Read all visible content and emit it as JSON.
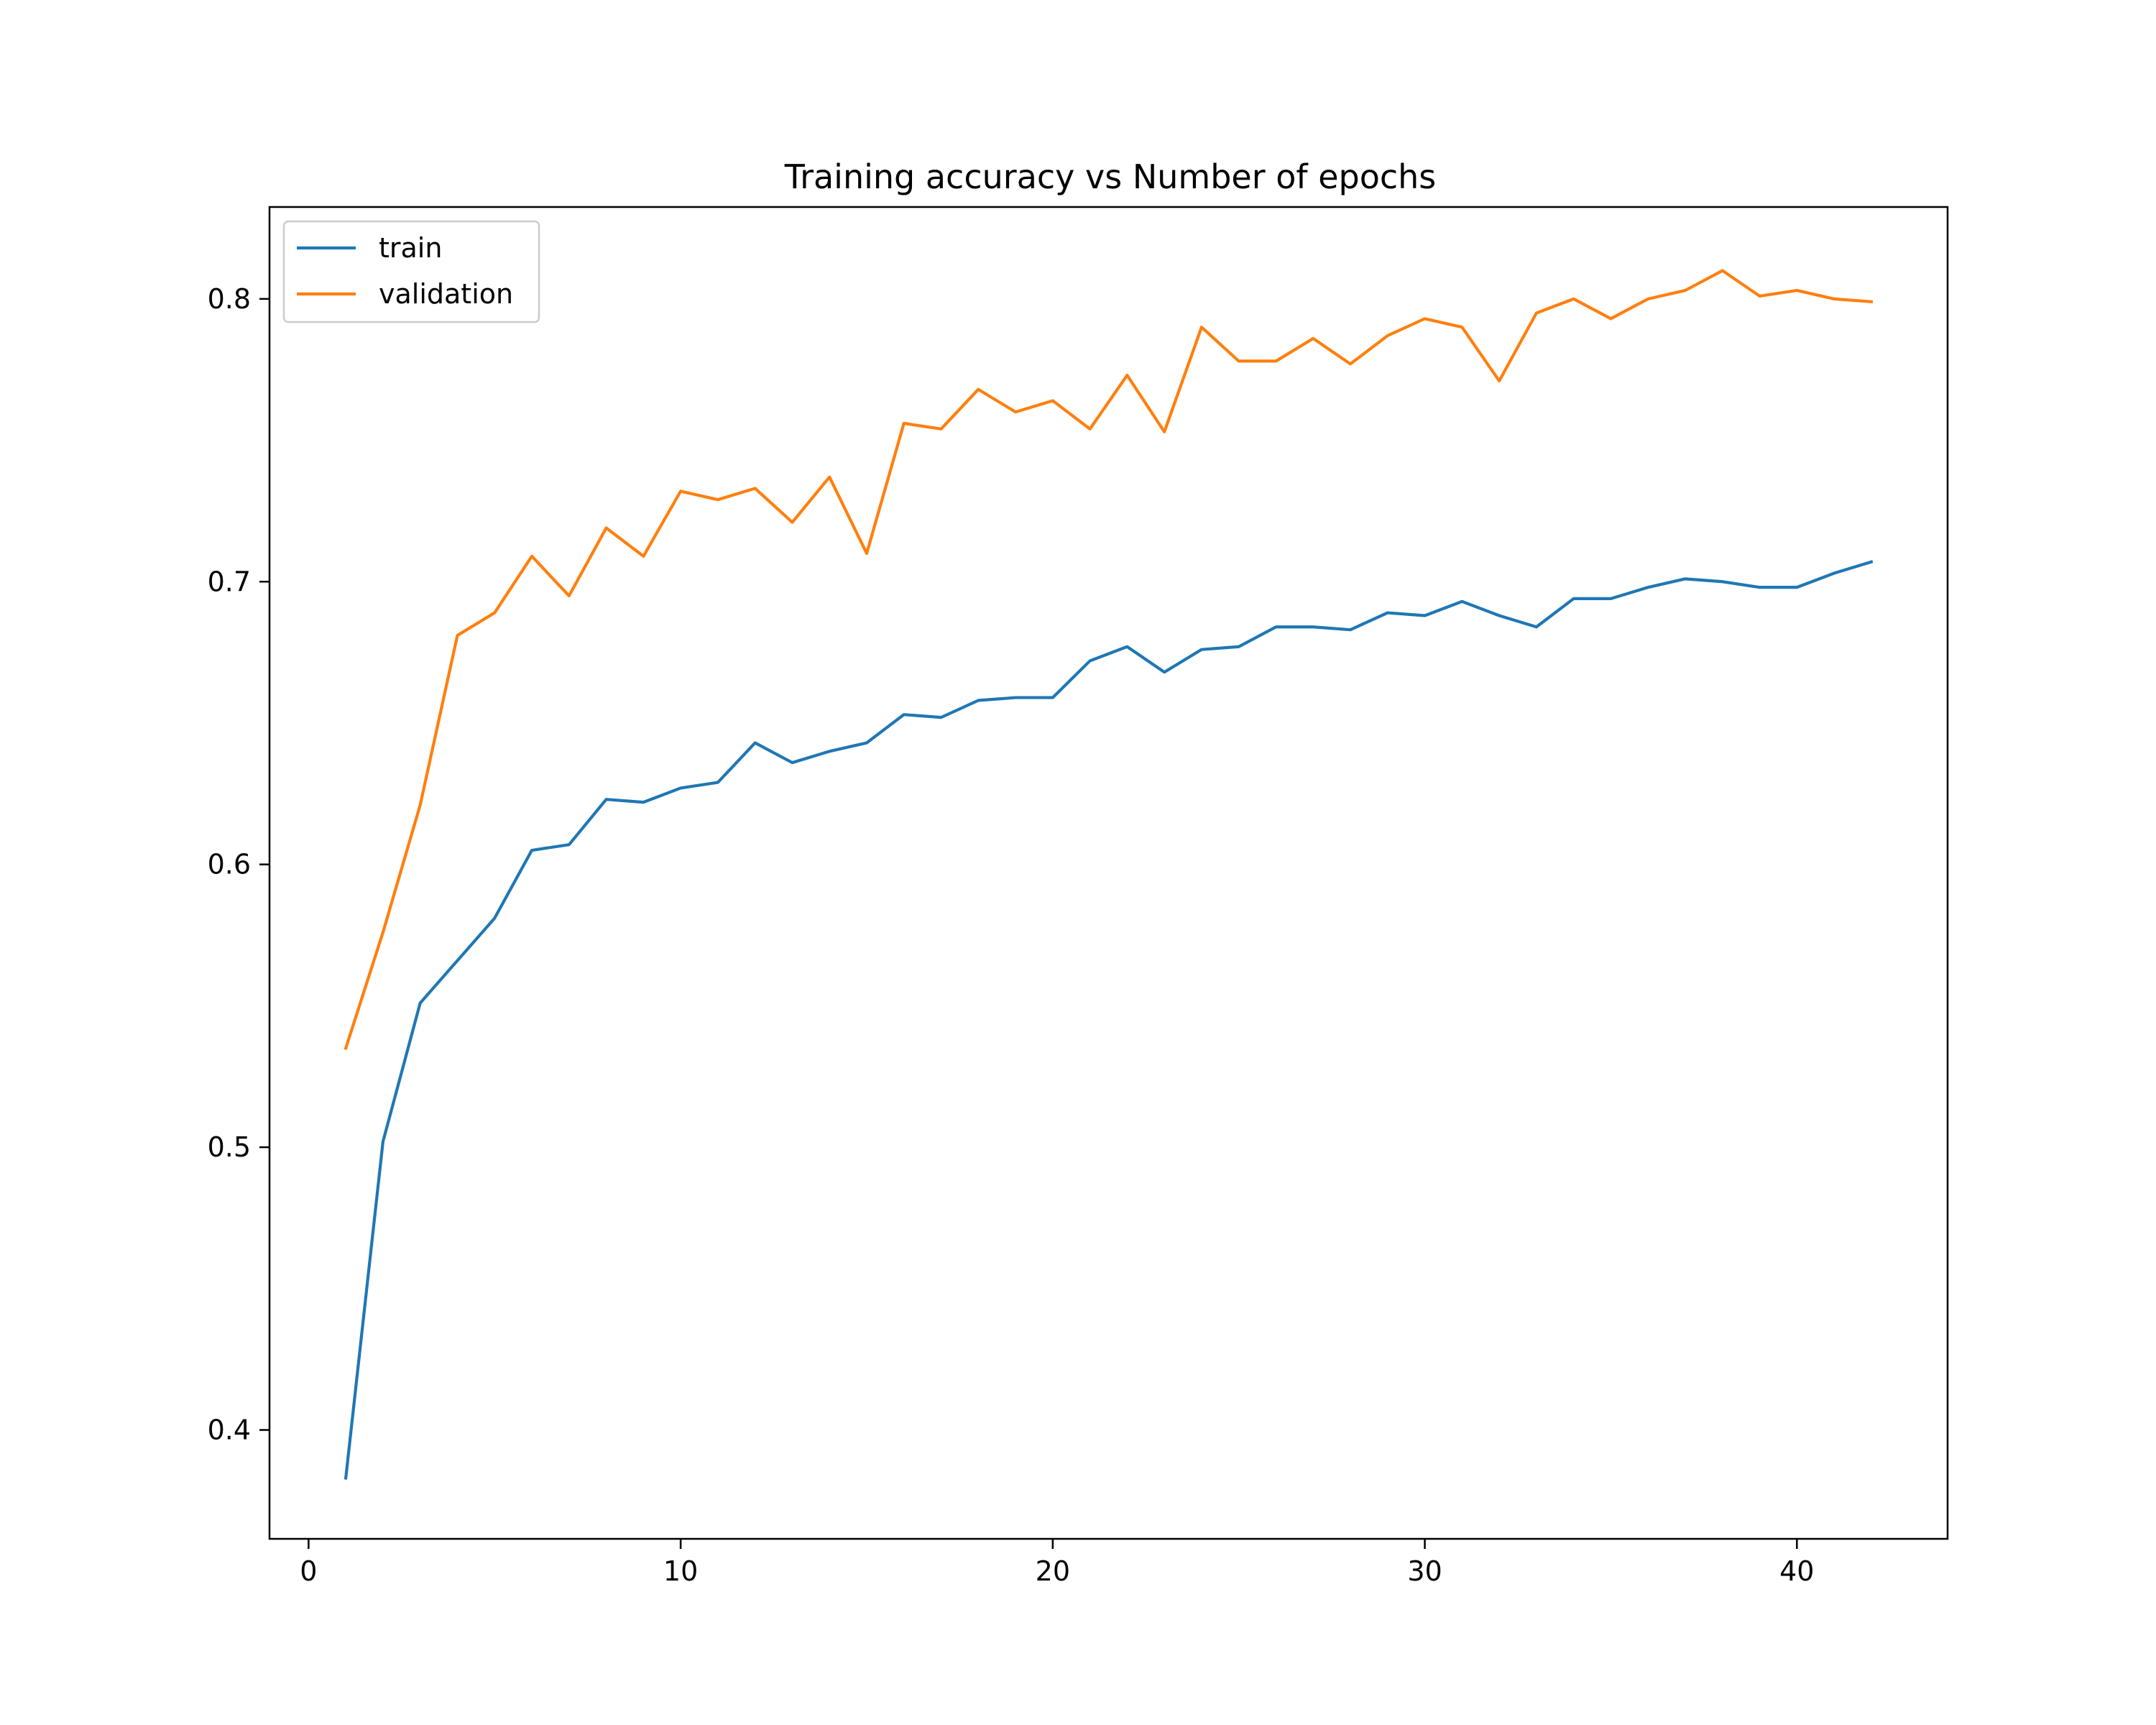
{
  "chart_data": {
    "type": "line",
    "title": "Training accuracy vs Number of epochs",
    "xlabel": "",
    "ylabel": "",
    "xlim": [
      -1.05,
      44.05
    ],
    "ylim": [
      0.3615,
      0.8325
    ],
    "xticks": [
      0,
      10,
      20,
      30,
      40
    ],
    "yticks": [
      0.4,
      0.5,
      0.6,
      0.7,
      0.8
    ],
    "xtick_labels": [
      "0",
      "10",
      "20",
      "30",
      "40"
    ],
    "ytick_labels": [
      "0.4",
      "0.5",
      "0.6",
      "0.7",
      "0.8"
    ],
    "grid": false,
    "legend": "upper left",
    "x": [
      1,
      2,
      3,
      4,
      5,
      6,
      7,
      8,
      9,
      10,
      11,
      12,
      13,
      14,
      15,
      16,
      17,
      18,
      19,
      20,
      21,
      22,
      23,
      24,
      25,
      26,
      27,
      28,
      29,
      30,
      31,
      32,
      33,
      34,
      35,
      36,
      37,
      38,
      39,
      40,
      41,
      42
    ],
    "series": [
      {
        "name": "train",
        "color": "#1f77b4",
        "values": [
          0.383,
          0.502,
          0.551,
          0.566,
          0.581,
          0.605,
          0.607,
          0.623,
          0.622,
          0.627,
          0.629,
          0.643,
          0.636,
          0.64,
          0.643,
          0.653,
          0.652,
          0.658,
          0.659,
          0.659,
          0.672,
          0.677,
          0.668,
          0.676,
          0.677,
          0.684,
          0.684,
          0.683,
          0.689,
          0.688,
          0.693,
          0.688,
          0.684,
          0.694,
          0.694,
          0.698,
          0.701,
          0.7,
          0.698,
          0.698,
          0.703,
          0.707
        ]
      },
      {
        "name": "validation",
        "color": "#ff7f0e",
        "values": [
          0.535,
          0.576,
          0.621,
          0.681,
          0.689,
          0.709,
          0.695,
          0.719,
          0.709,
          0.732,
          0.729,
          0.733,
          0.721,
          0.737,
          0.71,
          0.756,
          0.754,
          0.768,
          0.76,
          0.764,
          0.754,
          0.773,
          0.753,
          0.79,
          0.778,
          0.778,
          0.786,
          0.777,
          0.787,
          0.793,
          0.79,
          0.771,
          0.795,
          0.8,
          0.793,
          0.8,
          0.803,
          0.81,
          0.801,
          0.803,
          0.8,
          0.799
        ]
      }
    ]
  }
}
